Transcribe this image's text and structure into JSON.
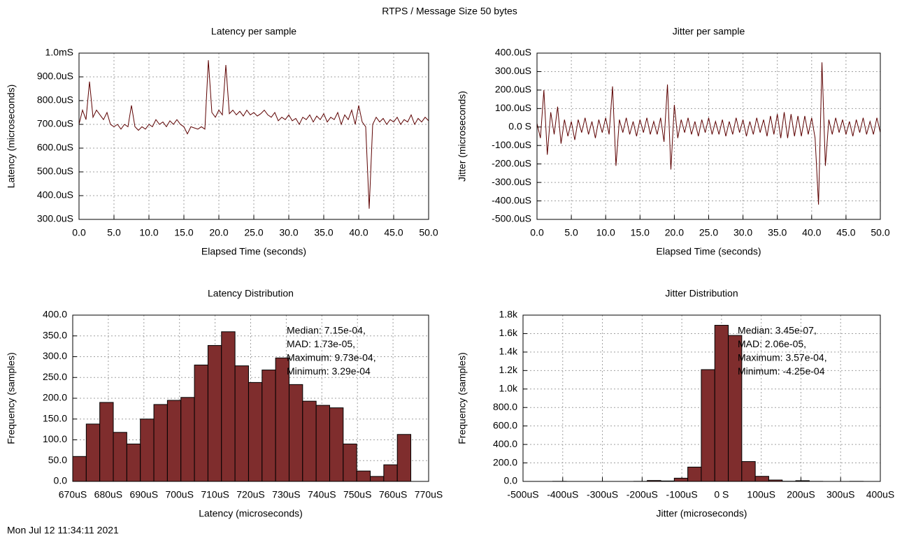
{
  "title": "RTPS / Message Size 50 bytes",
  "timestamp": "Mon Jul 12 11:34:11 2021",
  "chart_data": [
    {
      "type": "line",
      "title": "Latency per sample",
      "x_label": "Elapsed Time (seconds)",
      "y_label": "Latency (microseconds)",
      "color": "#5c0000",
      "grid": true,
      "x": [
        0,
        0.5,
        1,
        1.5,
        2,
        2.5,
        3,
        3.5,
        4,
        4.5,
        5,
        5.5,
        6,
        6.5,
        7,
        7.5,
        8,
        8.5,
        9,
        9.5,
        10,
        10.5,
        11,
        11.5,
        12,
        12.5,
        13,
        13.5,
        14,
        14.5,
        15,
        15.5,
        16,
        16.5,
        17,
        17.5,
        18,
        18.5,
        19,
        19.5,
        20,
        20.5,
        21,
        21.5,
        22,
        22.5,
        23,
        23.5,
        24,
        24.5,
        25,
        25.5,
        26,
        26.5,
        27,
        27.5,
        28,
        28.5,
        29,
        29.5,
        30,
        30.5,
        31,
        31.5,
        32,
        32.5,
        33,
        33.5,
        34,
        34.5,
        35,
        35.5,
        36,
        36.5,
        37,
        37.5,
        38,
        38.5,
        39,
        39.5,
        40,
        40.5,
        41,
        41.5,
        42,
        42.5,
        43,
        43.5,
        44,
        44.5,
        45,
        45.5,
        46,
        46.5,
        47,
        47.5,
        48,
        48.5,
        49,
        49.5,
        50
      ],
      "values": [
        700,
        760,
        720,
        880,
        730,
        760,
        740,
        720,
        750,
        700,
        690,
        700,
        680,
        700,
        690,
        780,
        690,
        675,
        690,
        680,
        700,
        690,
        720,
        700,
        710,
        690,
        715,
        700,
        720,
        700,
        690,
        660,
        690,
        685,
        680,
        690,
        680,
        970,
        750,
        730,
        760,
        740,
        950,
        745,
        760,
        740,
        755,
        735,
        760,
        740,
        750,
        735,
        745,
        760,
        740,
        730,
        750,
        715,
        730,
        720,
        740,
        715,
        725,
        700,
        730,
        720,
        740,
        710,
        735,
        720,
        745,
        710,
        730,
        720,
        750,
        700,
        740,
        720,
        760,
        700,
        780,
        710,
        690,
        345,
        700,
        730,
        710,
        725,
        700,
        720,
        710,
        730,
        700,
        720,
        710,
        740,
        700,
        725,
        710,
        730,
        715
      ],
      "xlim": [
        0,
        50
      ],
      "xticks": [
        {
          "value": 0,
          "label": "0.0"
        },
        {
          "value": 5,
          "label": "5.0"
        },
        {
          "value": 10,
          "label": "10.0"
        },
        {
          "value": 15,
          "label": "15.0"
        },
        {
          "value": 20,
          "label": "20.0"
        },
        {
          "value": 25,
          "label": "25.0"
        },
        {
          "value": 30,
          "label": "30.0"
        },
        {
          "value": 35,
          "label": "35.0"
        },
        {
          "value": 40,
          "label": "40.0"
        },
        {
          "value": 45,
          "label": "45.0"
        },
        {
          "value": 50,
          "label": "50.0"
        }
      ],
      "ylim": [
        300,
        1000
      ],
      "yticks": [
        {
          "value": 300,
          "label": "300.0uS"
        },
        {
          "value": 400,
          "label": "400.0uS"
        },
        {
          "value": 500,
          "label": "500.0uS"
        },
        {
          "value": 600,
          "label": "600.0uS"
        },
        {
          "value": 700,
          "label": "700.0uS"
        },
        {
          "value": 800,
          "label": "800.0uS"
        },
        {
          "value": 900,
          "label": "900.0uS"
        },
        {
          "value": 1000,
          "label": "1.0mS"
        }
      ]
    },
    {
      "type": "line",
      "title": "Jitter per sample",
      "x_label": "Elapsed Time (seconds)",
      "y_label": "Jitter (microseconds)",
      "color": "#5c0000",
      "grid": true,
      "x": [
        0,
        0.5,
        1,
        1.5,
        2,
        2.5,
        3,
        3.5,
        4,
        4.5,
        5,
        5.5,
        6,
        6.5,
        7,
        7.5,
        8,
        8.5,
        9,
        9.5,
        10,
        10.5,
        11,
        11.5,
        12,
        12.5,
        13,
        13.5,
        14,
        14.5,
        15,
        15.5,
        16,
        16.5,
        17,
        17.5,
        18,
        18.5,
        19,
        19.5,
        20,
        20.5,
        21,
        21.5,
        22,
        22.5,
        23,
        23.5,
        24,
        24.5,
        25,
        25.5,
        26,
        26.5,
        27,
        27.5,
        28,
        28.5,
        29,
        29.5,
        30,
        30.5,
        31,
        31.5,
        32,
        32.5,
        33,
        33.5,
        34,
        34.5,
        35,
        35.5,
        36,
        36.5,
        37,
        37.5,
        38,
        38.5,
        39,
        39.5,
        40,
        40.5,
        41,
        41.5,
        42,
        42.5,
        43,
        43.5,
        44,
        44.5,
        45,
        45.5,
        46,
        46.5,
        47,
        47.5,
        48,
        48.5,
        49,
        49.5,
        50
      ],
      "values": [
        20,
        -60,
        200,
        -150,
        80,
        -40,
        110,
        -90,
        40,
        -50,
        30,
        -70,
        40,
        -30,
        50,
        -40,
        30,
        -60,
        40,
        -30,
        50,
        -40,
        220,
        -210,
        40,
        -30,
        50,
        -40,
        30,
        -50,
        40,
        -30,
        50,
        -40,
        30,
        -40,
        50,
        -80,
        230,
        -230,
        120,
        -60,
        40,
        -30,
        50,
        -40,
        30,
        -50,
        40,
        -30,
        50,
        -40,
        30,
        -40,
        40,
        -50,
        30,
        -40,
        50,
        -30,
        40,
        -50,
        30,
        -40,
        50,
        -30,
        40,
        -50,
        60,
        -40,
        70,
        -60,
        80,
        -60,
        70,
        -50,
        60,
        -50,
        60,
        -40,
        50,
        -60,
        -420,
        350,
        -210,
        40,
        -40,
        50,
        -30,
        40,
        -40,
        30,
        -50,
        40,
        -30,
        50,
        -40,
        30,
        -40,
        50,
        -30
      ],
      "xlim": [
        0,
        50
      ],
      "xticks": [
        {
          "value": 0,
          "label": "0.0"
        },
        {
          "value": 5,
          "label": "5.0"
        },
        {
          "value": 10,
          "label": "10.0"
        },
        {
          "value": 15,
          "label": "15.0"
        },
        {
          "value": 20,
          "label": "20.0"
        },
        {
          "value": 25,
          "label": "25.0"
        },
        {
          "value": 30,
          "label": "30.0"
        },
        {
          "value": 35,
          "label": "35.0"
        },
        {
          "value": 40,
          "label": "40.0"
        },
        {
          "value": 45,
          "label": "45.0"
        },
        {
          "value": 50,
          "label": "50.0"
        }
      ],
      "ylim": [
        -500,
        400
      ],
      "yticks": [
        {
          "value": -500,
          "label": "-500.0uS"
        },
        {
          "value": -400,
          "label": "-400.0uS"
        },
        {
          "value": -300,
          "label": "-300.0uS"
        },
        {
          "value": -200,
          "label": "-200.0uS"
        },
        {
          "value": -100,
          "label": "-100.0uS"
        },
        {
          "value": 0,
          "label": "0.0 S"
        },
        {
          "value": 100,
          "label": "100.0uS"
        },
        {
          "value": 200,
          "label": "200.0uS"
        },
        {
          "value": 300,
          "label": "300.0uS"
        },
        {
          "value": 400,
          "label": "400.0uS"
        }
      ]
    },
    {
      "type": "histogram",
      "title": "Latency Distribution",
      "x_label": "Latency (microseconds)",
      "y_label": "Frequency (samples)",
      "color": "#7f2d2d",
      "grid": true,
      "annotation": [
        "Median: 7.15e-04,",
        "MAD: 1.73e-05,",
        "Maximum: 9.73e-04,",
        "Minimum: 3.29e-04"
      ],
      "bins": [
        670,
        673.8,
        677.6,
        681.4,
        685.2,
        689,
        692.8,
        696.6,
        700.4,
        704.2,
        708,
        711.8,
        715.6,
        719.4,
        723.2,
        727,
        730.8,
        734.6,
        738.4,
        742.2,
        746,
        749.8,
        753.6,
        757.4,
        761.2,
        765
      ],
      "values": [
        60,
        138,
        190,
        118,
        90,
        150,
        185,
        195,
        202,
        280,
        327,
        360,
        278,
        238,
        268,
        297,
        233,
        193,
        183,
        177,
        90,
        25,
        12,
        40,
        113
      ],
      "xlim": [
        670,
        770
      ],
      "xticks": [
        {
          "value": 670,
          "label": "670uS"
        },
        {
          "value": 680,
          "label": "680uS"
        },
        {
          "value": 690,
          "label": "690uS"
        },
        {
          "value": 700,
          "label": "700uS"
        },
        {
          "value": 710,
          "label": "710uS"
        },
        {
          "value": 720,
          "label": "720uS"
        },
        {
          "value": 730,
          "label": "730uS"
        },
        {
          "value": 740,
          "label": "740uS"
        },
        {
          "value": 750,
          "label": "750uS"
        },
        {
          "value": 760,
          "label": "760uS"
        },
        {
          "value": 770,
          "label": "770uS"
        }
      ],
      "ylim": [
        0,
        400
      ],
      "yticks": [
        {
          "value": 0,
          "label": "0.0"
        },
        {
          "value": 50,
          "label": "50.0"
        },
        {
          "value": 100,
          "label": "100.0"
        },
        {
          "value": 150,
          "label": "150.0"
        },
        {
          "value": 200,
          "label": "200.0"
        },
        {
          "value": 250,
          "label": "250.0"
        },
        {
          "value": 300,
          "label": "300.0"
        },
        {
          "value": 350,
          "label": "350.0"
        },
        {
          "value": 400,
          "label": "400.0"
        }
      ]
    },
    {
      "type": "histogram",
      "title": "Jitter Distribution",
      "x_label": "Jitter (microseconds)",
      "y_label": "Frequency (samples)",
      "color": "#7f2d2d",
      "grid": true,
      "annotation": [
        "Median: 3.45e-07,",
        "MAD: 2.06e-05,",
        "Maximum: 3.57e-04,",
        "Minimum: -4.25e-04"
      ],
      "bins": [
        -425,
        -391,
        -357,
        -323,
        -289,
        -255,
        -221,
        -187,
        -153,
        -119,
        -85,
        -51,
        -17,
        17,
        51,
        85,
        119,
        153,
        187,
        221,
        255,
        289,
        323,
        357
      ],
      "values": [
        1,
        0,
        0,
        0,
        0,
        0,
        1,
        10,
        5,
        35,
        155,
        1210,
        1690,
        1580,
        215,
        55,
        15,
        2,
        8,
        1,
        0,
        0,
        1
      ],
      "xlim": [
        -500,
        400
      ],
      "xticks": [
        {
          "value": -500,
          "label": "-500uS"
        },
        {
          "value": -400,
          "label": "-400uS"
        },
        {
          "value": -300,
          "label": "-300uS"
        },
        {
          "value": -200,
          "label": "-200uS"
        },
        {
          "value": -100,
          "label": "-100uS"
        },
        {
          "value": 0,
          "label": "0 S"
        },
        {
          "value": 100,
          "label": "100uS"
        },
        {
          "value": 200,
          "label": "200uS"
        },
        {
          "value": 300,
          "label": "300uS"
        },
        {
          "value": 400,
          "label": "400uS"
        }
      ],
      "ylim": [
        0,
        1800
      ],
      "yticks": [
        {
          "value": 0,
          "label": "0.0"
        },
        {
          "value": 200,
          "label": "200.0"
        },
        {
          "value": 400,
          "label": "400.0"
        },
        {
          "value": 600,
          "label": "600.0"
        },
        {
          "value": 800,
          "label": "800.0"
        },
        {
          "value": 1000,
          "label": "1.0k"
        },
        {
          "value": 1200,
          "label": "1.2k"
        },
        {
          "value": 1400,
          "label": "1.4k"
        },
        {
          "value": 1600,
          "label": "1.6k"
        },
        {
          "value": 1800,
          "label": "1.8k"
        }
      ]
    }
  ]
}
